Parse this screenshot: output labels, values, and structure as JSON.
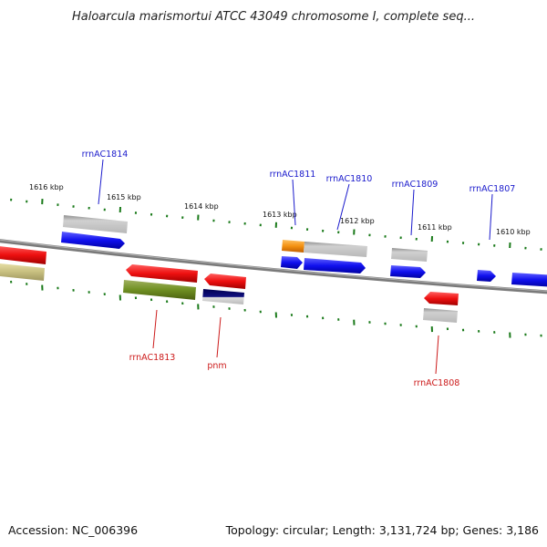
{
  "header": {
    "title": "Haloarcula marismortui ATCC 43049 chromosome I, complete seq..."
  },
  "footer": {
    "accession": "Accession: NC_006396",
    "summary": "Topology: circular; Length: 3,131,724 bp; Genes: 3,186"
  },
  "scale_labels": [
    "1616 kbp",
    "1615 kbp",
    "1614 kbp",
    "1613 kbp",
    "1612 kbp",
    "1611 kbp",
    "1610 kbp"
  ],
  "forward_labels": [
    "rrnAC1814",
    "rrnAC1811",
    "rrnAC1810",
    "rrnAC1809",
    "rrnAC1807"
  ],
  "reverse_labels": [
    "rrnAC1813",
    "pnm",
    "rrnAC1808"
  ],
  "colors": {
    "forward_label": "#1a1acc",
    "reverse_label": "#cc1a1a",
    "backbone": "#8a8a8a",
    "scale_ticks": "#1a7a1a",
    "gene_blue": "#1010ee",
    "gene_red": "#ee1010",
    "gene_gray": "#b0b0b0",
    "gene_orange": "#f39010",
    "gene_olive": "#6f8f22",
    "gene_khaki": "#c8c080",
    "gene_navy": "#101080"
  }
}
